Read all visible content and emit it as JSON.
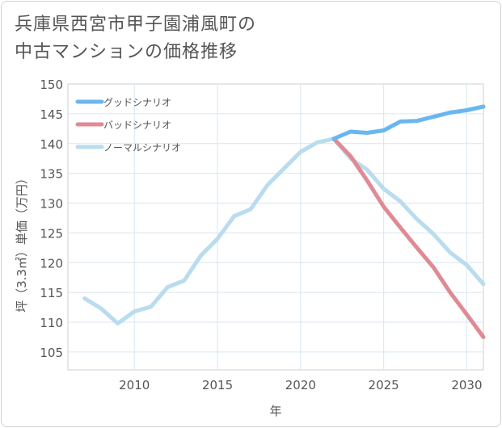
{
  "title_lines": [
    "兵庫県西宮市甲子園浦風町の",
    "中古マンションの価格推移"
  ],
  "chart_data": {
    "type": "line",
    "xlabel": "年",
    "ylabel": "坪（3.3㎡）単価（万円）",
    "xlim": [
      2006,
      2031
    ],
    "ylim": [
      102,
      150
    ],
    "xticks": [
      2010,
      2015,
      2020,
      2025,
      2030
    ],
    "yticks": [
      105,
      110,
      115,
      120,
      125,
      130,
      135,
      140,
      145,
      150
    ],
    "grid": true,
    "legend_position": "top-left",
    "series": [
      {
        "name": "グッドシナリオ",
        "color": "#6ab6f0",
        "x": [
          2022,
          2023,
          2024,
          2025,
          2026,
          2027,
          2028,
          2029,
          2030,
          2031
        ],
        "y": [
          140.8,
          142.0,
          141.8,
          142.2,
          143.7,
          143.8,
          144.5,
          145.2,
          145.6,
          146.2
        ]
      },
      {
        "name": "バッドシナリオ",
        "color": "#e08a94",
        "x": [
          2022,
          2023,
          2024,
          2025,
          2026,
          2027,
          2028,
          2029,
          2030,
          2031
        ],
        "y": [
          140.8,
          137.9,
          133.8,
          129.4,
          125.9,
          122.5,
          119.2,
          115.0,
          111.3,
          107.5
        ]
      },
      {
        "name": "ノーマルシナリオ",
        "color": "#b9dcee",
        "x": [
          2007,
          2008,
          2009,
          2010,
          2011,
          2012,
          2013,
          2014,
          2015,
          2016,
          2017,
          2018,
          2019,
          2020,
          2021,
          2022,
          2023,
          2024,
          2025,
          2026,
          2027,
          2028,
          2029,
          2030,
          2031
        ],
        "y": [
          114.0,
          112.3,
          109.8,
          111.8,
          112.6,
          115.9,
          117.0,
          121.2,
          124.0,
          127.8,
          129.0,
          133.0,
          135.8,
          138.6,
          140.2,
          140.8,
          137.5,
          135.6,
          132.4,
          130.3,
          127.3,
          124.8,
          121.7,
          119.6,
          116.4
        ]
      }
    ]
  }
}
